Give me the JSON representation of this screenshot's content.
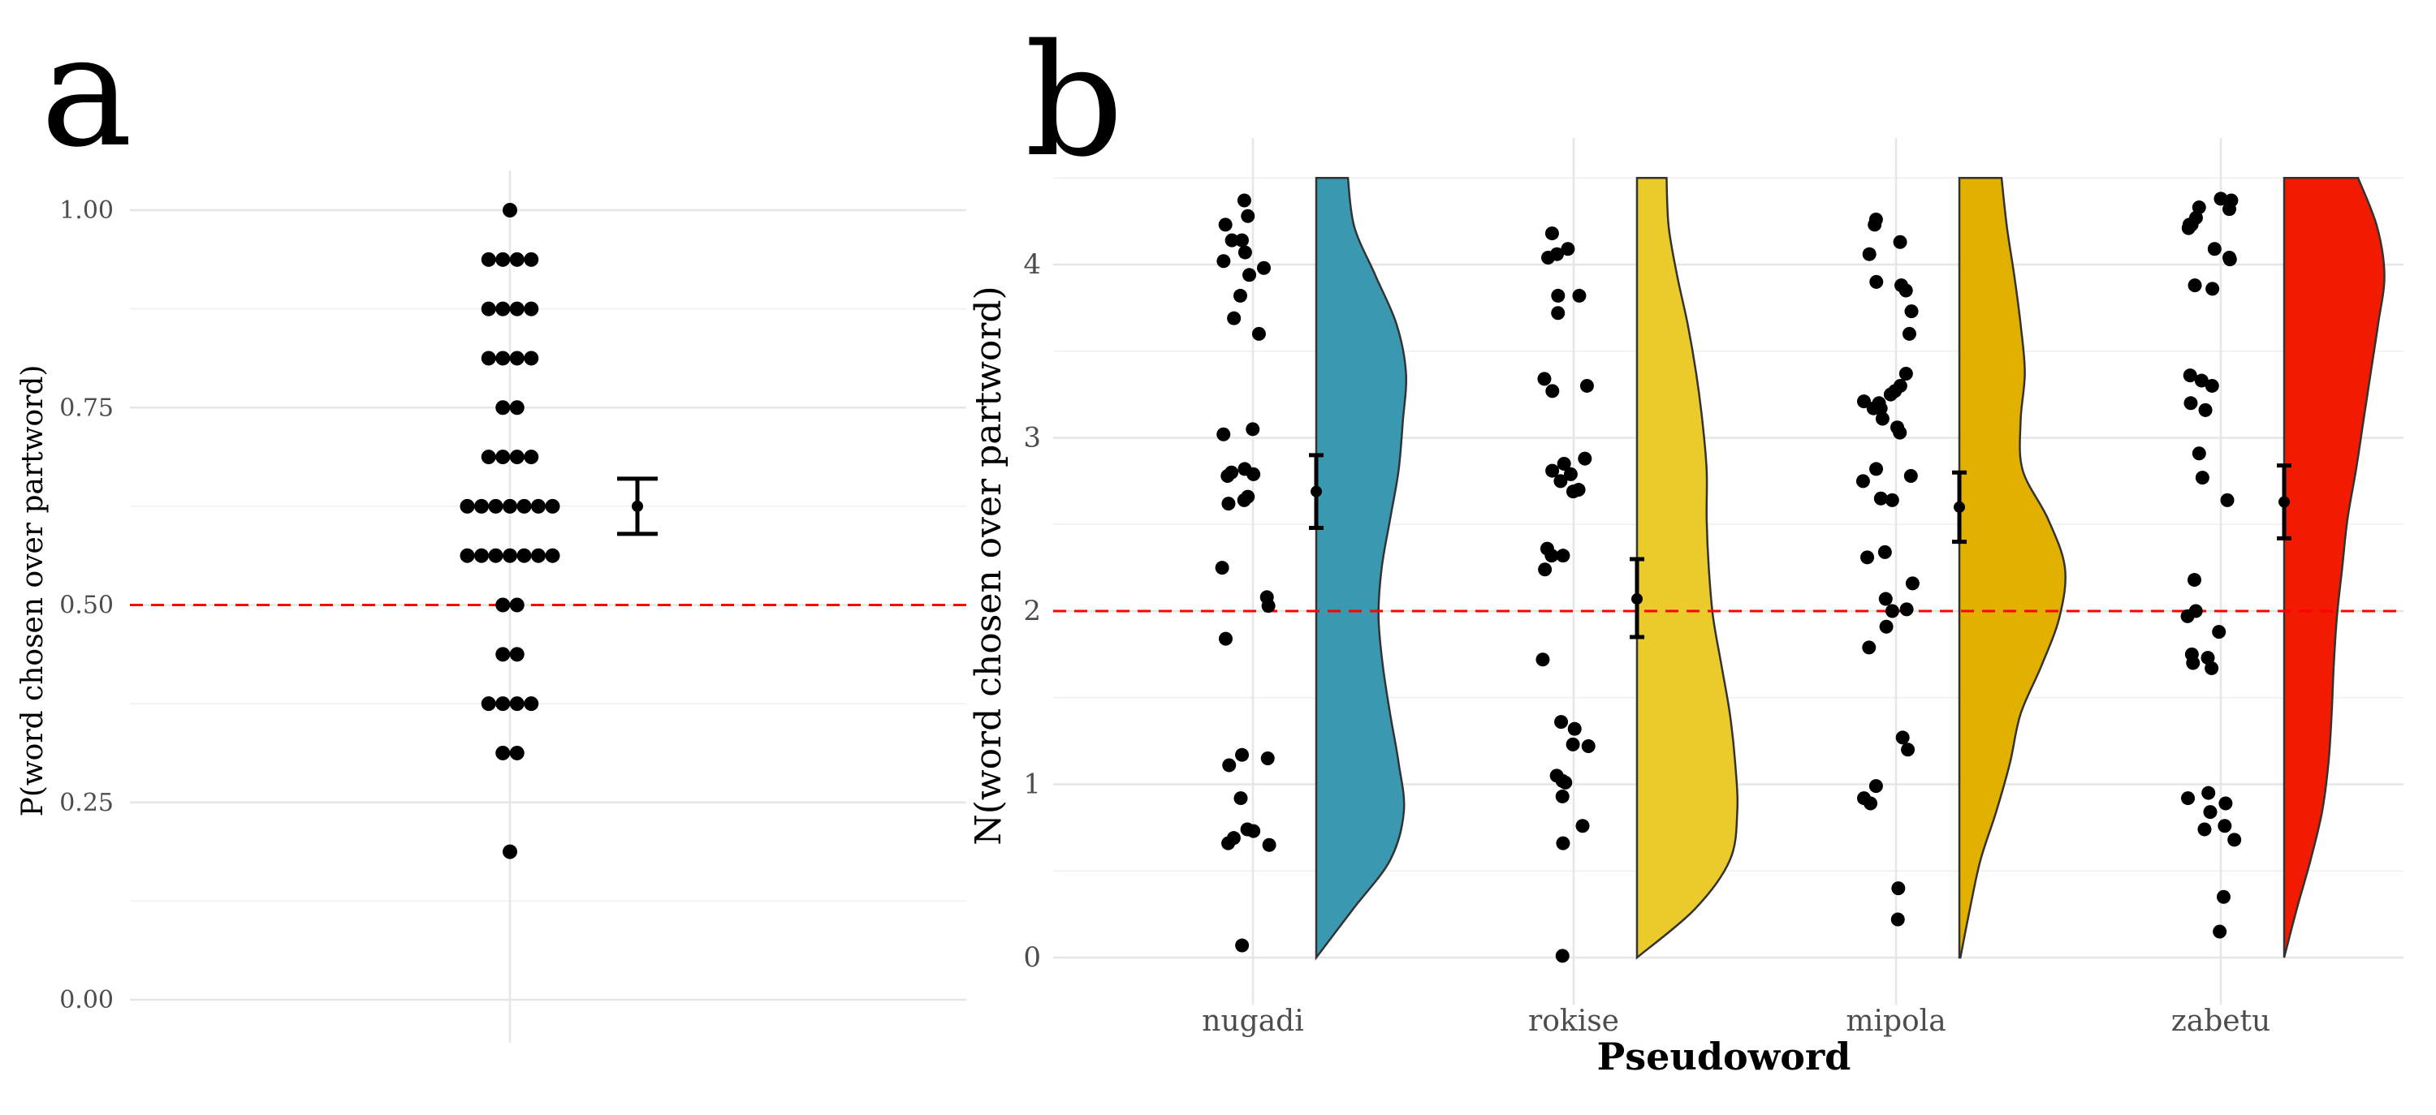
{
  "chart_data": [
    {
      "panel": "a",
      "type": "scatter",
      "ylabel": "P(word chosen over partword)",
      "ylim": [
        0,
        1
      ],
      "yticks": [
        "0.00",
        "0.25",
        "0.50",
        "0.75",
        "1.00"
      ],
      "reference_line": 0.5,
      "dot_values": [
        1.0,
        0.9375,
        0.9375,
        0.9375,
        0.9375,
        0.875,
        0.875,
        0.875,
        0.875,
        0.8125,
        0.8125,
        0.8125,
        0.8125,
        0.75,
        0.75,
        0.6875,
        0.6875,
        0.6875,
        0.6875,
        0.625,
        0.625,
        0.625,
        0.625,
        0.625,
        0.625,
        0.625,
        0.5625,
        0.5625,
        0.5625,
        0.5625,
        0.5625,
        0.5625,
        0.5625,
        0.5,
        0.5,
        0.4375,
        0.4375,
        0.375,
        0.375,
        0.375,
        0.375,
        0.3125,
        0.3125,
        0.1875
      ],
      "summary": {
        "mean": 0.625,
        "lower": 0.59,
        "upper": 0.66
      },
      "grid": true
    },
    {
      "panel": "b",
      "type": "scatter",
      "xlabel": "Pseudoword",
      "ylabel": "N(word chosen over partword)",
      "ylim": [
        0,
        4.5
      ],
      "yticks": [
        "0",
        "1",
        "2",
        "3",
        "4"
      ],
      "reference_line": 2,
      "grid": true,
      "categories": [
        "nugadi",
        "rokise",
        "mipola",
        "zabetu"
      ],
      "series": [
        {
          "name": "nugadi",
          "color": "#3A99B1",
          "points": [
            4.37,
            4.28,
            4.23,
            4.14,
            4.14,
            4.07,
            4.02,
            3.98,
            3.94,
            3.82,
            3.69,
            3.6,
            3.05,
            3.02,
            2.82,
            2.8,
            2.79,
            2.78,
            2.66,
            2.64,
            2.62,
            2.25,
            2.08,
            2.03,
            1.84,
            1.17,
            1.15,
            1.11,
            0.92,
            0.74,
            0.73,
            0.69,
            0.66,
            0.65,
            0.07
          ],
          "summary": {
            "mean": 2.69,
            "lower": 2.48,
            "upper": 2.9
          },
          "density": [
            0.0,
            0.35,
            0.7,
            0.83,
            0.78,
            0.7,
            0.63,
            0.59,
            0.62,
            0.7,
            0.78,
            0.82,
            0.85,
            0.76,
            0.56,
            0.36,
            0.3
          ]
        },
        {
          "name": "rokise",
          "color": "#EACB2B",
          "points": [
            4.18,
            4.09,
            4.06,
            4.04,
            3.82,
            3.82,
            3.72,
            3.34,
            3.3,
            3.27,
            2.88,
            2.85,
            2.81,
            2.79,
            2.75,
            2.7,
            2.69,
            2.36,
            2.32,
            2.32,
            2.24,
            1.72,
            1.36,
            1.32,
            1.23,
            1.22,
            1.05,
            1.02,
            1.01,
            0.93,
            0.76,
            0.66,
            0.01
          ],
          "summary": {
            "mean": 2.07,
            "lower": 1.85,
            "upper": 2.3
          },
          "density": [
            0.0,
            0.55,
            0.88,
            0.95,
            0.93,
            0.88,
            0.8,
            0.72,
            0.68,
            0.66,
            0.66,
            0.62,
            0.56,
            0.48,
            0.38,
            0.3,
            0.28
          ]
        },
        {
          "name": "mipola",
          "color": "#E2B100",
          "points": [
            4.26,
            4.23,
            4.13,
            4.06,
            3.9,
            3.88,
            3.85,
            3.73,
            3.6,
            3.37,
            3.3,
            3.27,
            3.25,
            3.21,
            3.2,
            3.17,
            3.17,
            3.11,
            3.06,
            3.03,
            2.82,
            2.78,
            2.75,
            2.65,
            2.64,
            2.34,
            2.31,
            2.16,
            2.07,
            2.01,
            2.0,
            1.91,
            1.79,
            1.27,
            1.2,
            0.99,
            0.92,
            0.89,
            0.4,
            0.22
          ],
          "summary": {
            "mean": 2.6,
            "lower": 2.4,
            "upper": 2.8
          },
          "density": [
            0.01,
            0.1,
            0.2,
            0.35,
            0.48,
            0.58,
            0.78,
            0.95,
            1.0,
            0.84,
            0.6,
            0.58,
            0.62,
            0.58,
            0.52,
            0.45,
            0.4
          ]
        },
        {
          "name": "zabetu",
          "color": "#F21A00",
          "points": [
            4.38,
            4.37,
            4.33,
            4.32,
            4.27,
            4.23,
            4.23,
            4.21,
            4.09,
            4.04,
            4.03,
            3.88,
            3.86,
            3.36,
            3.33,
            3.3,
            3.2,
            3.16,
            2.91,
            2.77,
            2.64,
            2.18,
            2.0,
            1.97,
            1.88,
            1.75,
            1.73,
            1.7,
            1.67,
            0.95,
            0.92,
            0.89,
            0.84,
            0.76,
            0.74,
            0.68,
            0.35,
            0.15
          ],
          "summary": {
            "mean": 2.63,
            "lower": 2.42,
            "upper": 2.84
          },
          "density": [
            0.0,
            0.12,
            0.25,
            0.36,
            0.42,
            0.45,
            0.47,
            0.5,
            0.55,
            0.6,
            0.68,
            0.75,
            0.82,
            0.89,
            0.95,
            0.88,
            0.7
          ]
        }
      ]
    }
  ]
}
